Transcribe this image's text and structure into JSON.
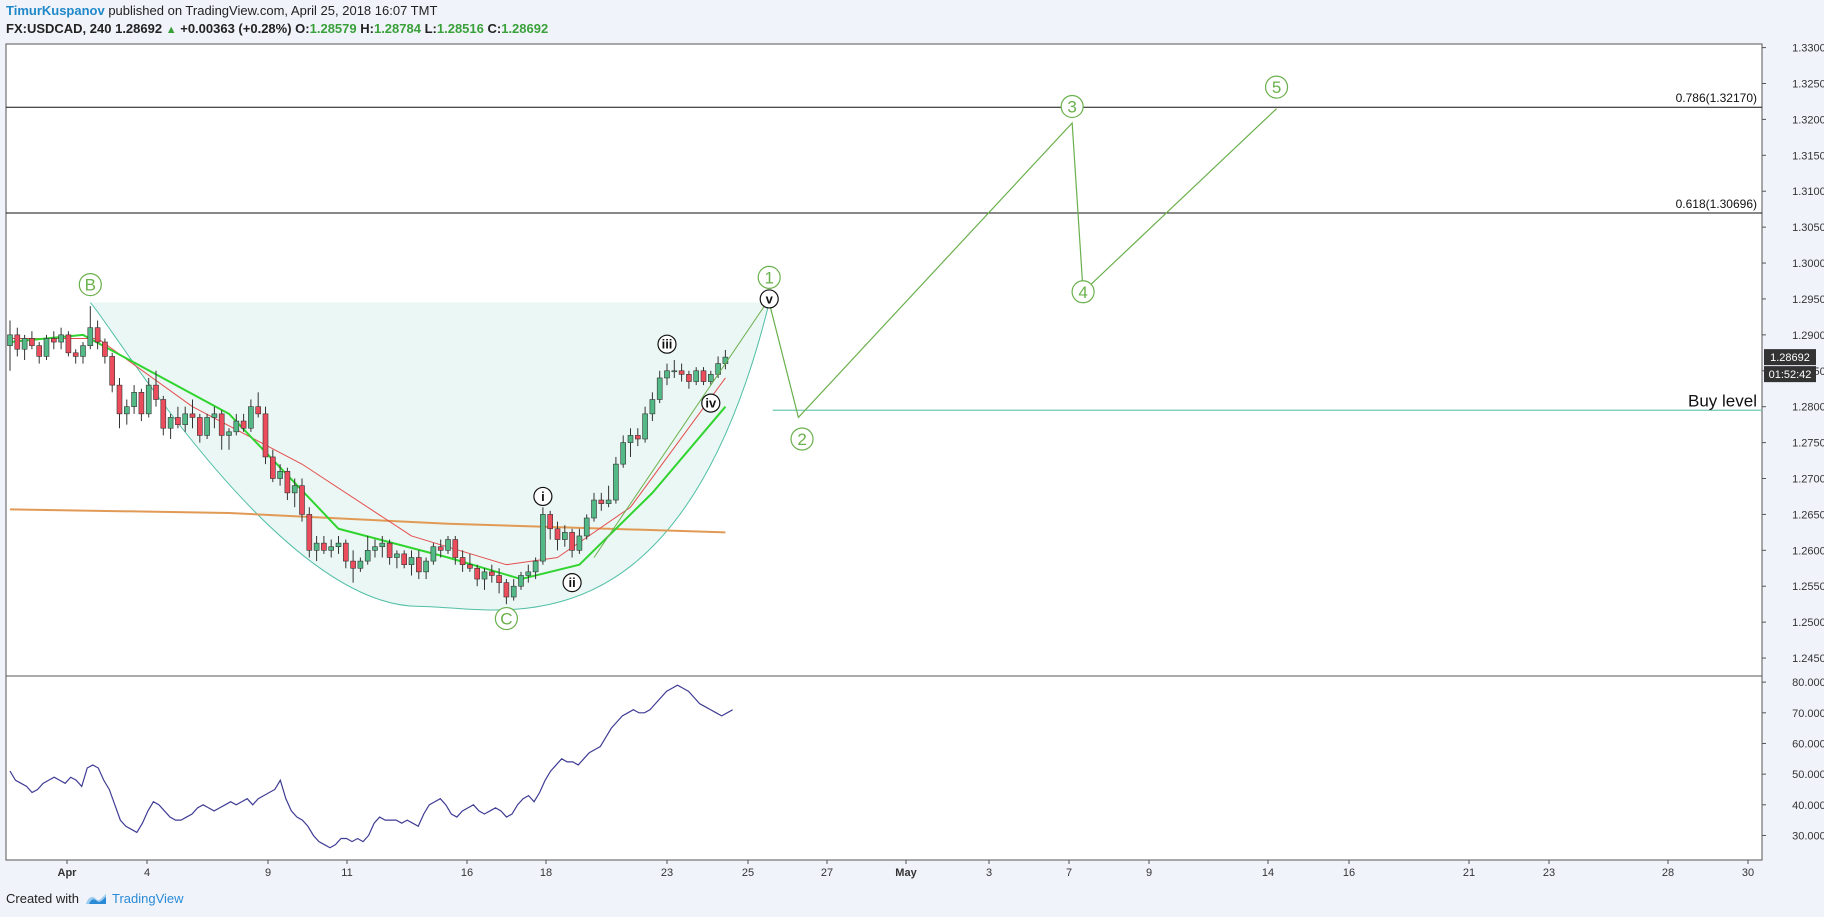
{
  "header": {
    "author": "TimurKuspanov",
    "published_text": " published on TradingView.com, April 25, 2018 16:07 TMT",
    "symbol": "FX:USDCAD, 240",
    "last_price": "1.28692",
    "change": "+0.00363 (+0.28%)",
    "open_label": "O:",
    "open_value": "1.28579",
    "high_label": "H:",
    "high_value": "1.28784",
    "low_label": "L:",
    "low_value": "1.28516",
    "close_label": "C:",
    "close_value": "1.28692"
  },
  "footer": {
    "created_with": "Created with",
    "brand": "TradingView"
  },
  "colors": {
    "bull": "#53b987",
    "bear": "#eb4d5c",
    "wave": "#6ab04c",
    "rsi": "#3f3c94",
    "sma_long": "#e19a55",
    "ema_fast": "#2fd42f",
    "ema_mid": "#e44d4d",
    "buy_line": "#6fc9b0"
  },
  "chart_data": {
    "type": "candlestick",
    "symbol": "FX:USDCAD",
    "interval": "240",
    "ylim": [
      1.2425,
      1.3305
    ],
    "y_ticks": [
      "1.24500",
      "1.25000",
      "1.25500",
      "1.26000",
      "1.26500",
      "1.27000",
      "1.27500",
      "1.28000",
      "1.28500",
      "1.29000",
      "1.29500",
      "1.30000",
      "1.30500",
      "1.31000",
      "1.31500",
      "1.32000",
      "1.32500",
      "1.33000"
    ],
    "x_ticks": [
      "Apr",
      "4",
      "9",
      "11",
      "16",
      "18",
      "23",
      "25",
      "27",
      "May",
      "3",
      "7",
      "9",
      "14",
      "16",
      "21",
      "23",
      "28",
      "30"
    ],
    "last_price_label": "1.28692",
    "countdown_label": "01:52:42",
    "candles": [
      [
        1.2885,
        1.292,
        1.285,
        1.29
      ],
      [
        1.29,
        1.291,
        1.287,
        1.288
      ],
      [
        1.288,
        1.29,
        1.2865,
        1.2895
      ],
      [
        1.2895,
        1.2905,
        1.288,
        1.2885
      ],
      [
        1.2885,
        1.289,
        1.286,
        1.287
      ],
      [
        1.287,
        1.29,
        1.2865,
        1.2895
      ],
      [
        1.2895,
        1.2905,
        1.288,
        1.289
      ],
      [
        1.289,
        1.291,
        1.288,
        1.29
      ],
      [
        1.29,
        1.2905,
        1.287,
        1.2875
      ],
      [
        1.2875,
        1.288,
        1.286,
        1.287
      ],
      [
        1.287,
        1.289,
        1.286,
        1.2885
      ],
      [
        1.2885,
        1.294,
        1.288,
        1.291
      ],
      [
        1.291,
        1.292,
        1.288,
        1.289
      ],
      [
        1.289,
        1.2895,
        1.286,
        1.287
      ],
      [
        1.287,
        1.2875,
        1.282,
        1.283
      ],
      [
        1.283,
        1.284,
        1.277,
        1.279
      ],
      [
        1.279,
        1.281,
        1.2775,
        1.28
      ],
      [
        1.28,
        1.283,
        1.279,
        1.282
      ],
      [
        1.282,
        1.2825,
        1.278,
        1.279
      ],
      [
        1.279,
        1.284,
        1.2785,
        1.283
      ],
      [
        1.283,
        1.285,
        1.28,
        1.281
      ],
      [
        1.281,
        1.2815,
        1.276,
        1.277
      ],
      [
        1.277,
        1.279,
        1.2755,
        1.2785
      ],
      [
        1.2785,
        1.28,
        1.277,
        1.2775
      ],
      [
        1.2775,
        1.28,
        1.2765,
        1.279
      ],
      [
        1.279,
        1.281,
        1.277,
        1.2785
      ],
      [
        1.2785,
        1.279,
        1.275,
        1.276
      ],
      [
        1.276,
        1.279,
        1.2755,
        1.2785
      ],
      [
        1.2785,
        1.28,
        1.277,
        1.279
      ],
      [
        1.279,
        1.2795,
        1.274,
        1.276
      ],
      [
        1.276,
        1.277,
        1.274,
        1.2765
      ],
      [
        1.2765,
        1.279,
        1.276,
        1.278
      ],
      [
        1.278,
        1.279,
        1.2765,
        1.277
      ],
      [
        1.277,
        1.281,
        1.2765,
        1.28
      ],
      [
        1.28,
        1.282,
        1.2785,
        1.279
      ],
      [
        1.279,
        1.28,
        1.272,
        1.273
      ],
      [
        1.273,
        1.274,
        1.2695,
        1.27
      ],
      [
        1.27,
        1.272,
        1.269,
        1.271
      ],
      [
        1.271,
        1.2715,
        1.267,
        1.268
      ],
      [
        1.268,
        1.27,
        1.266,
        1.269
      ],
      [
        1.269,
        1.27,
        1.264,
        1.265
      ],
      [
        1.265,
        1.266,
        1.259,
        1.26
      ],
      [
        1.26,
        1.262,
        1.2585,
        1.261
      ],
      [
        1.261,
        1.262,
        1.2595,
        1.26
      ],
      [
        1.26,
        1.2615,
        1.259,
        1.2605
      ],
      [
        1.2605,
        1.262,
        1.2595,
        1.261
      ],
      [
        1.261,
        1.2615,
        1.2575,
        1.2585
      ],
      [
        1.2585,
        1.26,
        1.2555,
        1.2575
      ],
      [
        1.2575,
        1.259,
        1.257,
        1.2585
      ],
      [
        1.2585,
        1.262,
        1.258,
        1.26
      ],
      [
        1.26,
        1.2615,
        1.259,
        1.2605
      ],
      [
        1.2605,
        1.262,
        1.259,
        1.261
      ],
      [
        1.261,
        1.2615,
        1.258,
        1.259
      ],
      [
        1.259,
        1.26,
        1.2575,
        1.2595
      ],
      [
        1.2595,
        1.26,
        1.2575,
        1.258
      ],
      [
        1.258,
        1.26,
        1.2565,
        1.259
      ],
      [
        1.259,
        1.26,
        1.256,
        1.257
      ],
      [
        1.257,
        1.259,
        1.256,
        1.2585
      ],
      [
        1.2585,
        1.261,
        1.258,
        1.2605
      ],
      [
        1.2605,
        1.2615,
        1.259,
        1.26
      ],
      [
        1.26,
        1.262,
        1.2595,
        1.2615
      ],
      [
        1.2615,
        1.262,
        1.258,
        1.259
      ],
      [
        1.259,
        1.26,
        1.257,
        1.258
      ],
      [
        1.258,
        1.2595,
        1.257,
        1.2575
      ],
      [
        1.2575,
        1.258,
        1.255,
        1.256
      ],
      [
        1.256,
        1.2575,
        1.2545,
        1.257
      ],
      [
        1.257,
        1.258,
        1.2555,
        1.2565
      ],
      [
        1.2565,
        1.2575,
        1.254,
        1.2555
      ],
      [
        1.2555,
        1.256,
        1.2525,
        1.2535
      ],
      [
        1.2535,
        1.256,
        1.253,
        1.255
      ],
      [
        1.255,
        1.257,
        1.2545,
        1.2565
      ],
      [
        1.2565,
        1.258,
        1.2555,
        1.257
      ],
      [
        1.257,
        1.259,
        1.256,
        1.2585
      ],
      [
        1.2585,
        1.266,
        1.258,
        1.265
      ],
      [
        1.265,
        1.2655,
        1.2615,
        1.263
      ],
      [
        1.263,
        1.264,
        1.26,
        1.2615
      ],
      [
        1.2615,
        1.2635,
        1.2605,
        1.2625
      ],
      [
        1.2625,
        1.263,
        1.259,
        1.26
      ],
      [
        1.26,
        1.263,
        1.2595,
        1.262
      ],
      [
        1.262,
        1.265,
        1.2615,
        1.2645
      ],
      [
        1.2645,
        1.268,
        1.264,
        1.267
      ],
      [
        1.267,
        1.268,
        1.2655,
        1.2665
      ],
      [
        1.2665,
        1.269,
        1.266,
        1.267
      ],
      [
        1.267,
        1.273,
        1.2665,
        1.272
      ],
      [
        1.272,
        1.276,
        1.2715,
        1.275
      ],
      [
        1.275,
        1.277,
        1.273,
        1.276
      ],
      [
        1.276,
        1.277,
        1.2745,
        1.2755
      ],
      [
        1.2755,
        1.28,
        1.275,
        1.279
      ],
      [
        1.279,
        1.282,
        1.278,
        1.281
      ],
      [
        1.281,
        1.285,
        1.2805,
        1.284
      ],
      [
        1.284,
        1.286,
        1.283,
        1.285
      ],
      [
        1.285,
        1.2865,
        1.284,
        1.285
      ],
      [
        1.285,
        1.286,
        1.2835,
        1.2845
      ],
      [
        1.2845,
        1.285,
        1.2825,
        1.2835
      ],
      [
        1.2835,
        1.2855,
        1.283,
        1.285
      ],
      [
        1.285,
        1.2855,
        1.283,
        1.2835
      ],
      [
        1.2835,
        1.285,
        1.283,
        1.2845
      ],
      [
        1.2845,
        1.287,
        1.284,
        1.286
      ],
      [
        1.286,
        1.2879,
        1.2852,
        1.2869
      ]
    ],
    "sma_long": [
      [
        0,
        1.2657
      ],
      [
        30,
        1.2652
      ],
      [
        60,
        1.2637
      ],
      [
        98,
        1.2625
      ]
    ],
    "ema_mid": [
      [
        0,
        1.2895
      ],
      [
        12,
        1.2895
      ],
      [
        25,
        1.28
      ],
      [
        40,
        1.272
      ],
      [
        55,
        1.262
      ],
      [
        68,
        1.258
      ],
      [
        75,
        1.259
      ],
      [
        85,
        1.266
      ],
      [
        98,
        1.284
      ]
    ],
    "ema_slow": [
      [
        0,
        1.289
      ],
      [
        10,
        1.29
      ],
      [
        30,
        1.279
      ],
      [
        45,
        1.263
      ],
      [
        60,
        1.259
      ],
      [
        70,
        1.256
      ],
      [
        78,
        1.258
      ],
      [
        88,
        1.268
      ],
      [
        98,
        1.28
      ]
    ],
    "buy_level": {
      "value": 1.2795,
      "label": "Buy level"
    },
    "fib_levels": [
      {
        "ratio": "0.786",
        "value": 1.3217,
        "label": "0.786(1.32170)"
      },
      {
        "ratio": "0.618",
        "value": 1.30696,
        "label": "0.618(1.30696)"
      }
    ],
    "wave_labels": [
      {
        "text": "B",
        "style": "green",
        "bar": 11,
        "price": 1.297
      },
      {
        "text": "C",
        "style": "green",
        "bar": 68,
        "price": 1.2505
      },
      {
        "text": "i",
        "style": "black",
        "bar": 73,
        "price": 1.2675
      },
      {
        "text": "ii",
        "style": "black",
        "bar": 77,
        "price": 1.2555
      },
      {
        "text": "iii",
        "style": "black",
        "bar": 90,
        "price": 1.2887
      },
      {
        "text": "iv",
        "style": "black",
        "bar": 96,
        "price": 1.2805
      },
      {
        "text": "v",
        "style": "black",
        "bar": 104,
        "price": 1.295
      },
      {
        "text": "1",
        "style": "green",
        "bar": 104,
        "price": 1.298
      },
      {
        "text": "2",
        "style": "green",
        "bar": 108.5,
        "price": 1.2755
      },
      {
        "text": "3",
        "style": "green",
        "bar": 145.5,
        "price": 1.3218
      },
      {
        "text": "4",
        "style": "green",
        "bar": 147,
        "price": 1.296
      },
      {
        "text": "5",
        "style": "green",
        "bar": 173.5,
        "price": 1.3245
      }
    ],
    "projection": [
      [
        104,
        1.2945
      ],
      [
        108,
        1.2785
      ],
      [
        145.5,
        1.3195
      ],
      [
        147,
        1.296
      ],
      [
        173.5,
        1.3215
      ]
    ],
    "bowl": {
      "left": [
        11,
        1.2945
      ],
      "bottom": [
        56,
        1.2522
      ],
      "right": [
        104,
        1.2945
      ]
    },
    "rsi": {
      "ylim": [
        22,
        82
      ],
      "y_ticks": [
        "30.0000",
        "40.0000",
        "50.0000",
        "60.0000",
        "70.0000",
        "80.0000"
      ],
      "values": [
        51,
        48,
        47,
        46,
        44,
        45,
        47,
        48,
        49,
        48,
        47,
        49,
        48,
        46,
        52,
        53,
        52,
        48,
        45,
        40,
        35,
        33,
        32,
        31,
        34,
        38,
        41,
        40,
        38,
        36,
        35,
        35,
        36,
        37,
        39,
        40,
        39,
        38,
        39,
        40,
        41,
        40,
        41,
        42,
        40,
        42,
        43,
        44,
        45,
        48,
        42,
        38,
        36,
        35,
        33,
        30,
        28,
        27,
        26,
        27,
        29,
        29,
        28,
        29,
        28,
        30,
        34,
        36,
        35,
        35,
        35,
        34,
        35,
        34,
        33,
        37,
        40,
        41,
        42,
        40,
        37,
        36,
        38,
        39,
        40,
        38,
        37,
        38,
        39,
        38,
        36,
        37,
        40,
        42,
        43,
        41,
        44,
        48,
        51,
        53,
        55,
        54,
        54,
        53,
        55,
        57,
        58,
        59,
        62,
        65,
        67,
        69,
        70,
        71,
        70,
        70,
        71,
        73,
        75,
        77,
        78,
        79,
        78,
        77,
        75,
        73,
        72,
        71,
        70,
        69,
        70,
        71
      ]
    }
  }
}
